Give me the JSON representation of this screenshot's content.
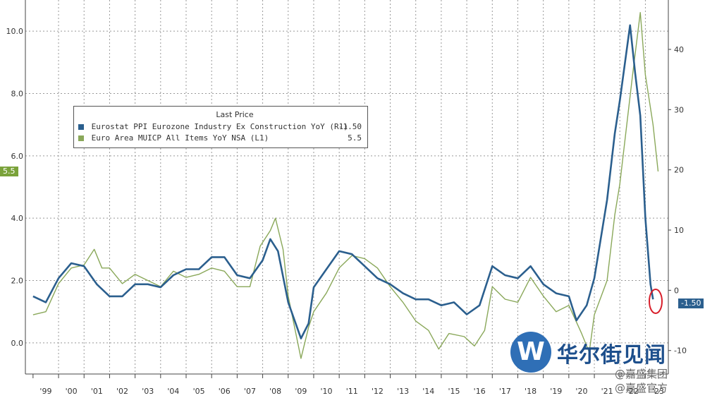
{
  "chart_data": {
    "type": "line",
    "title": "",
    "xlabel": "",
    "x_ticks": [
      "'99",
      "'00",
      "'01",
      "'02",
      "'03",
      "'04",
      "'05",
      "'06",
      "'07",
      "'08",
      "'09",
      "'10",
      "'11",
      "'12",
      "'13",
      "'14",
      "'15",
      "'16",
      "'17",
      "'18",
      "'19",
      "'20",
      "'21",
      "'22",
      "'23"
    ],
    "y_left": {
      "ticks": [
        "0.0",
        "2.0",
        "4.0",
        "6.0",
        "8.0",
        "10.0"
      ],
      "range": [
        -1.0,
        11.0
      ]
    },
    "y_right": {
      "ticks": [
        "-10",
        "0",
        "10",
        "20",
        "30",
        "40"
      ],
      "range": [
        -13.9,
        48.2
      ]
    },
    "legend": {
      "header": "Last Price",
      "placement": "top-left",
      "entries": [
        {
          "label": "Eurostat PPI Eurozone Industry Ex Construction YoY (R1)",
          "last": "-1.50",
          "color": "#2b5f8e"
        },
        {
          "label": "Euro Area MUICP All Items YoY NSA (L1)",
          "last": "5.5",
          "color": "#8aa85a"
        }
      ]
    },
    "badges": {
      "left": "5.5",
      "right": "-1.50"
    },
    "series": [
      {
        "name": "Eurostat PPI Eurozone Industry Ex Construction YoY (R1)",
        "axis": "right",
        "color": "#2b5f8e",
        "points": [
          [
            1999.0,
            -1.0
          ],
          [
            1999.5,
            -2.0
          ],
          [
            2000.0,
            2.0
          ],
          [
            2000.5,
            4.5
          ],
          [
            2001.0,
            4.0
          ],
          [
            2001.5,
            1.0
          ],
          [
            2002.0,
            -1.0
          ],
          [
            2002.5,
            -1.0
          ],
          [
            2003.0,
            1.0
          ],
          [
            2003.5,
            1.0
          ],
          [
            2004.0,
            0.5
          ],
          [
            2004.5,
            2.5
          ],
          [
            2005.0,
            3.5
          ],
          [
            2005.5,
            3.5
          ],
          [
            2006.0,
            5.5
          ],
          [
            2006.5,
            5.5
          ],
          [
            2007.0,
            2.5
          ],
          [
            2007.5,
            2.0
          ],
          [
            2008.0,
            5.0
          ],
          [
            2008.3,
            8.5
          ],
          [
            2008.6,
            6.5
          ],
          [
            2009.0,
            -2.0
          ],
          [
            2009.5,
            -8.0
          ],
          [
            2009.8,
            -5.5
          ],
          [
            2010.0,
            0.5
          ],
          [
            2010.5,
            3.5
          ],
          [
            2011.0,
            6.5
          ],
          [
            2011.5,
            6.0
          ],
          [
            2012.0,
            4.0
          ],
          [
            2012.5,
            2.0
          ],
          [
            2013.0,
            1.0
          ],
          [
            2013.5,
            -0.5
          ],
          [
            2014.0,
            -1.5
          ],
          [
            2014.5,
            -1.5
          ],
          [
            2015.0,
            -2.5
          ],
          [
            2015.5,
            -2.0
          ],
          [
            2016.0,
            -4.0
          ],
          [
            2016.5,
            -2.5
          ],
          [
            2017.0,
            4.0
          ],
          [
            2017.5,
            2.5
          ],
          [
            2018.0,
            2.0
          ],
          [
            2018.5,
            4.0
          ],
          [
            2019.0,
            1.0
          ],
          [
            2019.5,
            -0.5
          ],
          [
            2020.0,
            -1.0
          ],
          [
            2020.3,
            -5.0
          ],
          [
            2020.7,
            -2.5
          ],
          [
            2021.0,
            2.0
          ],
          [
            2021.5,
            15.0
          ],
          [
            2021.8,
            26.0
          ],
          [
            2022.0,
            31.5
          ],
          [
            2022.4,
            44.0
          ],
          [
            2022.6,
            36.0
          ],
          [
            2022.8,
            29.0
          ],
          [
            2023.0,
            12.0
          ],
          [
            2023.2,
            1.0
          ],
          [
            2023.3,
            -1.5
          ]
        ]
      },
      {
        "name": "Euro Area MUICP All Items YoY NSA (L1)",
        "axis": "left",
        "color": "#8aa85a",
        "points": [
          [
            1999.0,
            0.9
          ],
          [
            1999.5,
            1.0
          ],
          [
            2000.0,
            1.9
          ],
          [
            2000.5,
            2.4
          ],
          [
            2001.0,
            2.5
          ],
          [
            2001.4,
            3.0
          ],
          [
            2001.7,
            2.4
          ],
          [
            2002.0,
            2.4
          ],
          [
            2002.5,
            1.9
          ],
          [
            2003.0,
            2.2
          ],
          [
            2003.5,
            2.0
          ],
          [
            2004.0,
            1.8
          ],
          [
            2004.5,
            2.3
          ],
          [
            2005.0,
            2.1
          ],
          [
            2005.5,
            2.2
          ],
          [
            2006.0,
            2.4
          ],
          [
            2006.5,
            2.3
          ],
          [
            2007.0,
            1.8
          ],
          [
            2007.5,
            1.8
          ],
          [
            2007.9,
            3.1
          ],
          [
            2008.3,
            3.6
          ],
          [
            2008.5,
            4.0
          ],
          [
            2008.8,
            3.0
          ],
          [
            2009.0,
            1.5
          ],
          [
            2009.5,
            -0.5
          ],
          [
            2009.8,
            0.5
          ],
          [
            2010.0,
            1.0
          ],
          [
            2010.5,
            1.6
          ],
          [
            2011.0,
            2.4
          ],
          [
            2011.5,
            2.8
          ],
          [
            2012.0,
            2.7
          ],
          [
            2012.5,
            2.4
          ],
          [
            2013.0,
            1.8
          ],
          [
            2013.5,
            1.3
          ],
          [
            2014.0,
            0.7
          ],
          [
            2014.5,
            0.4
          ],
          [
            2014.9,
            -0.2
          ],
          [
            2015.3,
            0.3
          ],
          [
            2015.9,
            0.2
          ],
          [
            2016.3,
            -0.1
          ],
          [
            2016.7,
            0.4
          ],
          [
            2017.0,
            1.8
          ],
          [
            2017.5,
            1.4
          ],
          [
            2018.0,
            1.3
          ],
          [
            2018.5,
            2.1
          ],
          [
            2019.0,
            1.5
          ],
          [
            2019.5,
            1.0
          ],
          [
            2020.0,
            1.2
          ],
          [
            2020.5,
            0.3
          ],
          [
            2020.8,
            -0.3
          ],
          [
            2021.0,
            0.9
          ],
          [
            2021.5,
            2.0
          ],
          [
            2021.8,
            4.1
          ],
          [
            2022.0,
            5.1
          ],
          [
            2022.5,
            8.6
          ],
          [
            2022.8,
            10.6
          ],
          [
            2023.0,
            8.6
          ],
          [
            2023.3,
            7.0
          ],
          [
            2023.5,
            5.5
          ]
        ]
      }
    ]
  },
  "watermark": {
    "name": "华尔街见闻",
    "sub1": "@嘉盛集团",
    "sub2": "@嘉盛官方"
  }
}
